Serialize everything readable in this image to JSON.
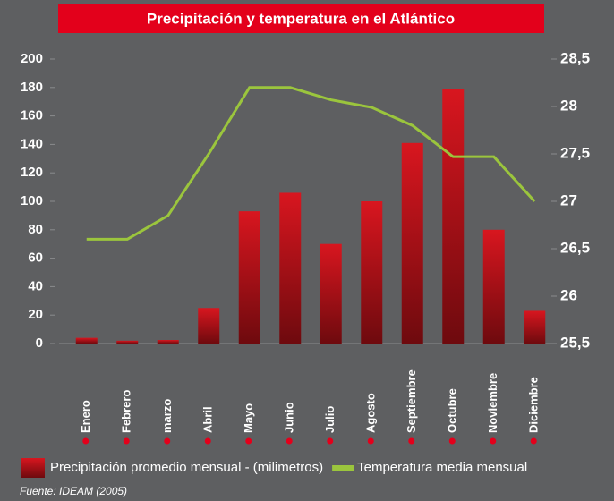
{
  "chart_data": {
    "type": "bar",
    "title": "Precipitación y temperatura en el Atlántico",
    "categories": [
      "Enero",
      "Febrero",
      "marzo",
      "Abril",
      "Mayo",
      "Junio",
      "Julio",
      "Agosto",
      "Septiembre",
      "Octubre",
      "Noviembre",
      "Diciembre"
    ],
    "series": [
      {
        "name": "Precipitación promedio mensual - (milimetros)",
        "color": "#c0121c",
        "values": [
          4,
          2,
          2.5,
          25,
          93,
          106,
          70,
          100,
          141,
          179,
          80,
          23
        ]
      },
      {
        "name": "Temperatura media mensual",
        "color": "#9bc53d",
        "axis": "y2",
        "type": "line",
        "values": [
          26.6,
          26.6,
          26.85,
          27.5,
          28.2,
          28.2,
          28.07,
          27.99,
          27.8,
          27.47,
          27.47,
          27.0
        ]
      }
    ],
    "ylim": [
      0,
      200
    ],
    "yticks": [
      0,
      20,
      40,
      60,
      80,
      100,
      120,
      140,
      160,
      180,
      200
    ],
    "y2lim": [
      25.5,
      28.5
    ],
    "y2ticks": [
      {
        "value": 25.5,
        "label": "25,5"
      },
      26,
      {
        "value": 26.5,
        "label": "26,5"
      },
      27,
      {
        "value": 27.5,
        "label": "27,5"
      },
      28,
      {
        "value": 28.5,
        "label": "28,5"
      }
    ],
    "source": "Fuente: IDEAM (2005)"
  }
}
